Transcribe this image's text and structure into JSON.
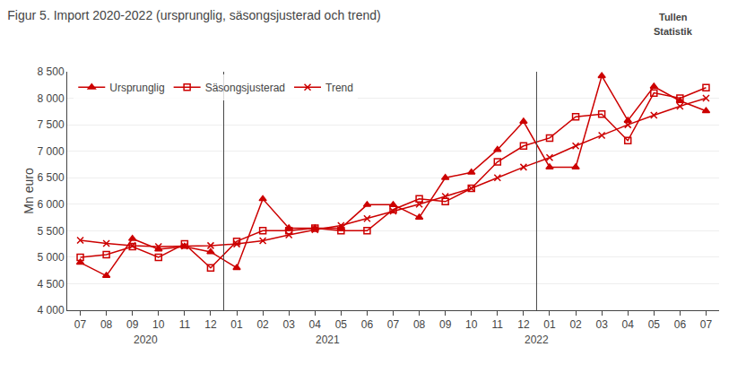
{
  "chart_data": {
    "type": "line",
    "title": "Figur 5. Import 2020-2022 (ursprunglig, säsongsjusterad och trend)",
    "ylabel": "Mn euro",
    "categories": [
      "07",
      "08",
      "09",
      "10",
      "11",
      "12",
      "01",
      "02",
      "03",
      "04",
      "05",
      "06",
      "07",
      "08",
      "09",
      "10",
      "11",
      "12",
      "01",
      "02",
      "03",
      "04",
      "05",
      "06",
      "07"
    ],
    "series": [
      {
        "name": "Ursprunglig",
        "color": "#cc0000",
        "marker": "triangle-up",
        "values": [
          4900,
          4650,
          5350,
          5150,
          5200,
          5100,
          4800,
          6100,
          5550,
          5550,
          5550,
          5990,
          5990,
          5750,
          6500,
          6600,
          7030,
          7560,
          6700,
          6700,
          8420,
          7580,
          8220,
          7950,
          7760
        ]
      },
      {
        "name": "Säsongsjusterad",
        "color": "#cc0000",
        "marker": "square-open",
        "values": [
          5000,
          5050,
          5200,
          5000,
          5250,
          4800,
          5300,
          5500,
          5500,
          5550,
          5500,
          5500,
          5900,
          6100,
          6050,
          6300,
          6800,
          7100,
          7250,
          7650,
          7700,
          7200,
          8100,
          8000,
          8200
        ]
      },
      {
        "name": "Trend",
        "color": "#cc0000",
        "marker": "x",
        "values": [
          5320,
          5260,
          5220,
          5200,
          5210,
          5220,
          5250,
          5310,
          5420,
          5520,
          5600,
          5730,
          5870,
          6000,
          6150,
          6300,
          6500,
          6700,
          6880,
          7100,
          7300,
          7500,
          7680,
          7850,
          8000
        ]
      }
    ],
    "ylim": [
      4000,
      8500
    ],
    "yticks": [
      {
        "value": 4000,
        "label": "4 000"
      },
      {
        "value": 4500,
        "label": "4 500"
      },
      {
        "value": 5000,
        "label": "5 000"
      },
      {
        "value": 5500,
        "label": "5 500"
      },
      {
        "value": 6000,
        "label": "6 000"
      },
      {
        "value": 6500,
        "label": "6 500"
      },
      {
        "value": 7000,
        "label": "7 000"
      },
      {
        "value": 7500,
        "label": "7 500"
      },
      {
        "value": 8000,
        "label": "8 000"
      },
      {
        "value": 8500,
        "label": "8 500"
      }
    ],
    "grid": true,
    "legend": "upper left",
    "annotations": [
      {
        "text": "2020",
        "x": 2.5
      },
      {
        "text": "2021",
        "x": 9.5
      },
      {
        "text": "2022",
        "x": 17.5
      },
      {
        "text": "Tullen"
      },
      {
        "text": "Statistik"
      }
    ]
  }
}
